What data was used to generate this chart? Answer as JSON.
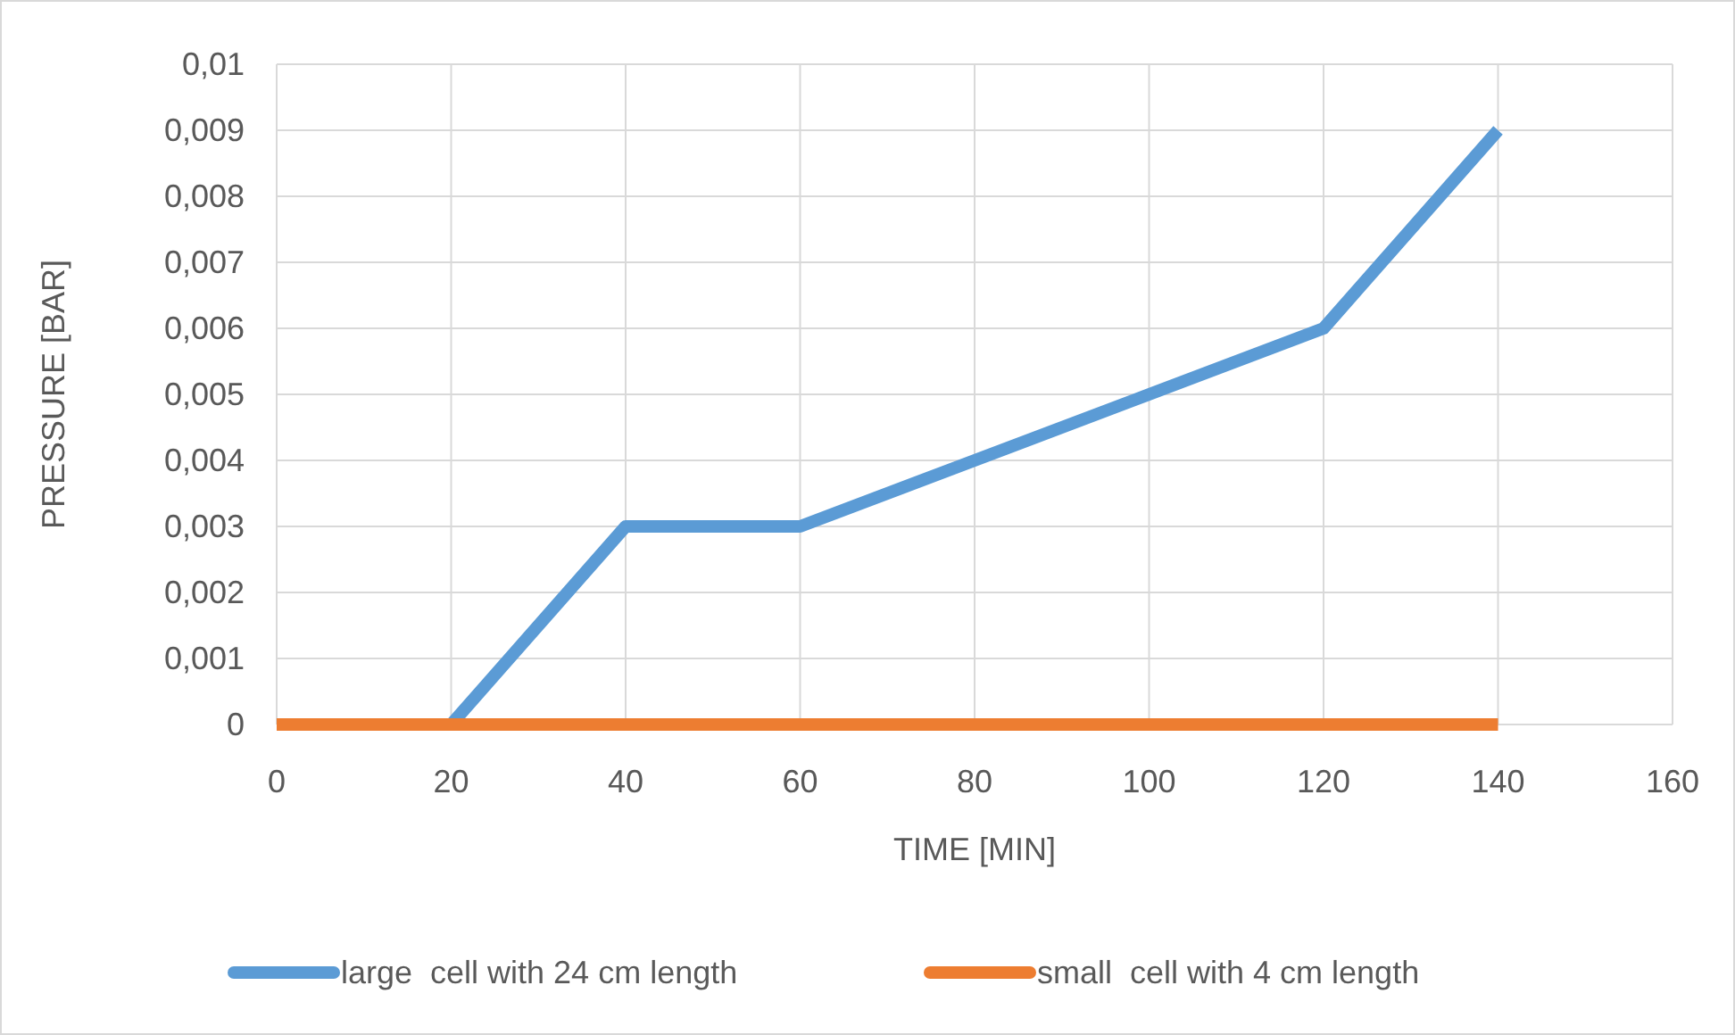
{
  "chart_data": {
    "type": "line",
    "xlabel": "TIME [MIN]",
    "ylabel": "PRESSURE [BAR]",
    "x": [
      0,
      20,
      40,
      60,
      80,
      100,
      120,
      140
    ],
    "series": [
      {
        "name": "large  cell with 24 cm length",
        "color": "#5b9bd5",
        "values": [
          null,
          0,
          0.003,
          0.003,
          0.004,
          0.005,
          0.006,
          0.009
        ]
      },
      {
        "name": "small  cell with 4 cm length",
        "color": "#ed7d31",
        "values": [
          0,
          0,
          0,
          0,
          0,
          0,
          0,
          0
        ]
      }
    ],
    "xlim": [
      0,
      160
    ],
    "xticks": [
      0,
      20,
      40,
      60,
      80,
      100,
      120,
      140,
      160
    ],
    "ylim": [
      0,
      0.01
    ],
    "yticks": [
      0,
      {
        "value": 0.001,
        "label": "0,001"
      },
      {
        "value": 0.002,
        "label": "0,002"
      },
      {
        "value": 0.003,
        "label": "0,003"
      },
      {
        "value": 0.004,
        "label": "0,004"
      },
      {
        "value": 0.005,
        "label": "0,005"
      },
      {
        "value": 0.006,
        "label": "0,006"
      },
      {
        "value": 0.007,
        "label": "0,007"
      },
      {
        "value": 0.008,
        "label": "0,008"
      },
      {
        "value": 0.009,
        "label": "0,009"
      },
      {
        "value": 0.01,
        "label": "0,01"
      }
    ],
    "grid": true,
    "legend": "bottom",
    "marker": "none",
    "line_style": "solid"
  }
}
